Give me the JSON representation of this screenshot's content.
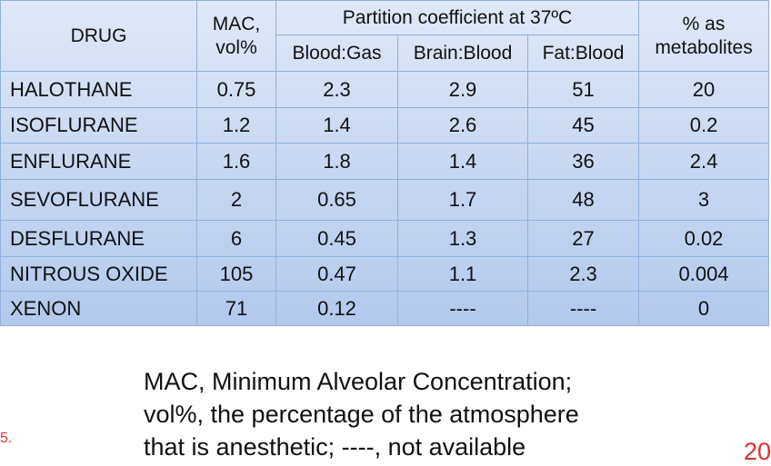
{
  "table": {
    "header": {
      "drug": "DRUG",
      "mac": [
        "MAC,",
        "vol%"
      ],
      "partition": "Partition coefficient at 37ºC",
      "partition_columns": [
        "Blood:Gas",
        "Brain:Blood",
        "Fat:Blood"
      ],
      "metabolites": [
        "% as",
        "metabolites"
      ]
    },
    "rows": [
      [
        "HALOTHANE",
        "0.75",
        "2.3",
        "2.9",
        "51",
        "20"
      ],
      [
        "ISOFLURANE",
        "1.2",
        "1.4",
        "2.6",
        "45",
        "0.2"
      ],
      [
        "ENFLURANE",
        "1.6",
        "1.8",
        "1.4",
        "36",
        "2.4"
      ],
      [
        "SEVOFLURANE",
        "2",
        "0.65",
        "1.7",
        "48",
        "3"
      ],
      [
        "DESFLURANE",
        "6",
        "0.45",
        "1.3",
        "27",
        "0.02"
      ],
      [
        "NITROUS OXIDE",
        "105",
        "0.47",
        "1.1",
        "2.3",
        "0.004"
      ],
      [
        "XENON",
        "71",
        "0.12",
        "----",
        "----",
        "0"
      ]
    ]
  },
  "footnote": [
    "MAC, Minimum Alveolar Concentration;",
    "vol%, the percentage of the atmosphere",
    "that is anesthetic; ----, not available"
  ],
  "page_marks": {
    "left": "5.",
    "right": "20"
  }
}
